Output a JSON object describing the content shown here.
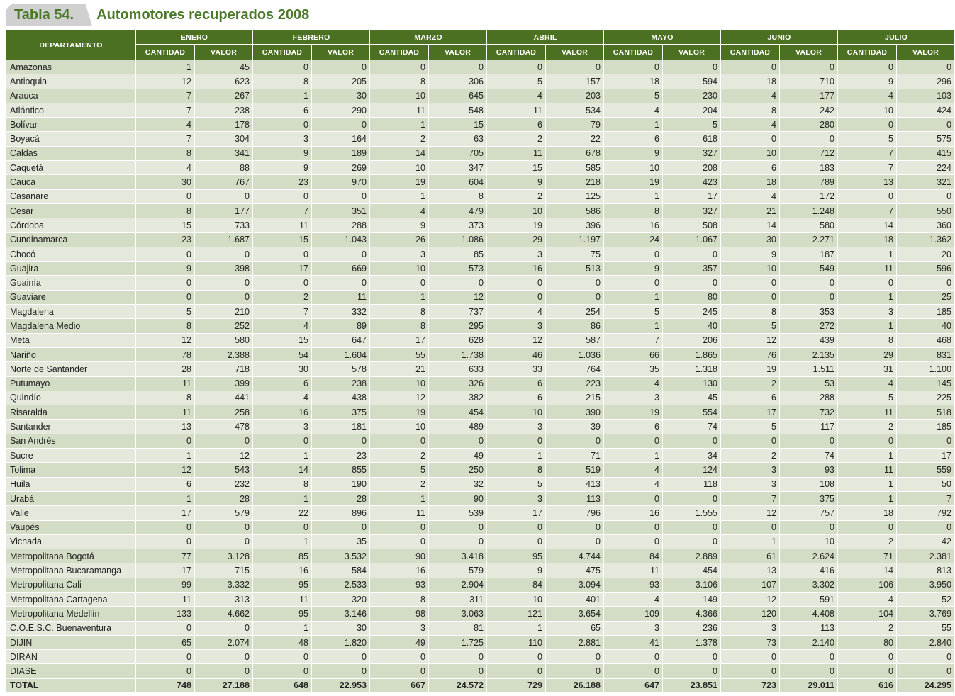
{
  "title": {
    "label": "Tabla 54.",
    "text": "Automotores recuperados 2008"
  },
  "colors": {
    "header": "#4b7021",
    "row_dark": "#d3dcc4",
    "row_light": "#e4e9dc",
    "title": "#4a7a28"
  },
  "table": {
    "dept_header": "DEPARTAMENTO",
    "sub_headers": {
      "qty": "CANTIDAD",
      "val": "VALOR"
    },
    "months": [
      "ENERO",
      "FEBRERO",
      "MARZO",
      "ABRIL",
      "MAYO",
      "JUNIO",
      "JULIO"
    ],
    "rows": [
      [
        "Amazonas",
        "1",
        "45",
        "0",
        "0",
        "0",
        "0",
        "0",
        "0",
        "0",
        "0",
        "0",
        "0",
        "0",
        "0"
      ],
      [
        "Antioquia",
        "12",
        "623",
        "8",
        "205",
        "8",
        "306",
        "5",
        "157",
        "18",
        "594",
        "18",
        "710",
        "9",
        "296"
      ],
      [
        "Arauca",
        "7",
        "267",
        "1",
        "30",
        "10",
        "645",
        "4",
        "203",
        "5",
        "230",
        "4",
        "177",
        "4",
        "103"
      ],
      [
        "Atlántico",
        "7",
        "238",
        "6",
        "290",
        "11",
        "548",
        "11",
        "534",
        "4",
        "204",
        "8",
        "242",
        "10",
        "424"
      ],
      [
        "Bolívar",
        "4",
        "178",
        "0",
        "0",
        "1",
        "15",
        "6",
        "79",
        "1",
        "5",
        "4",
        "280",
        "0",
        "0"
      ],
      [
        "Boyacá",
        "7",
        "304",
        "3",
        "164",
        "2",
        "63",
        "2",
        "22",
        "6",
        "618",
        "0",
        "0",
        "5",
        "575"
      ],
      [
        "Caldas",
        "8",
        "341",
        "9",
        "189",
        "14",
        "705",
        "11",
        "678",
        "9",
        "327",
        "10",
        "712",
        "7",
        "415"
      ],
      [
        "Caquetá",
        "4",
        "88",
        "9",
        "269",
        "10",
        "347",
        "15",
        "585",
        "10",
        "208",
        "6",
        "183",
        "7",
        "224"
      ],
      [
        "Cauca",
        "30",
        "767",
        "23",
        "970",
        "19",
        "604",
        "9",
        "218",
        "19",
        "423",
        "18",
        "789",
        "13",
        "321"
      ],
      [
        "Casanare",
        "0",
        "0",
        "0",
        "0",
        "1",
        "8",
        "2",
        "125",
        "1",
        "17",
        "4",
        "172",
        "0",
        "0"
      ],
      [
        "Cesar",
        "8",
        "177",
        "7",
        "351",
        "4",
        "479",
        "10",
        "586",
        "8",
        "327",
        "21",
        "1.248",
        "7",
        "550"
      ],
      [
        "Córdoba",
        "15",
        "733",
        "11",
        "288",
        "9",
        "373",
        "19",
        "396",
        "16",
        "508",
        "14",
        "580",
        "14",
        "360"
      ],
      [
        "Cundinamarca",
        "23",
        "1.687",
        "15",
        "1.043",
        "26",
        "1.086",
        "29",
        "1.197",
        "24",
        "1.067",
        "30",
        "2.271",
        "18",
        "1.362"
      ],
      [
        "Chocó",
        "0",
        "0",
        "0",
        "0",
        "3",
        "85",
        "3",
        "75",
        "0",
        "0",
        "9",
        "187",
        "1",
        "20"
      ],
      [
        "Guajira",
        "9",
        "398",
        "17",
        "669",
        "10",
        "573",
        "16",
        "513",
        "9",
        "357",
        "10",
        "549",
        "11",
        "596"
      ],
      [
        "Guainía",
        "0",
        "0",
        "0",
        "0",
        "0",
        "0",
        "0",
        "0",
        "0",
        "0",
        "0",
        "0",
        "0",
        "0"
      ],
      [
        "Guaviare",
        "0",
        "0",
        "2",
        "11",
        "1",
        "12",
        "0",
        "0",
        "1",
        "80",
        "0",
        "0",
        "1",
        "25"
      ],
      [
        "Magdalena",
        "5",
        "210",
        "7",
        "332",
        "8",
        "737",
        "4",
        "254",
        "5",
        "245",
        "8",
        "353",
        "3",
        "185"
      ],
      [
        "Magdalena Medio",
        "8",
        "252",
        "4",
        "89",
        "8",
        "295",
        "3",
        "86",
        "1",
        "40",
        "5",
        "272",
        "1",
        "40"
      ],
      [
        "Meta",
        "12",
        "580",
        "15",
        "647",
        "17",
        "628",
        "12",
        "587",
        "7",
        "206",
        "12",
        "439",
        "8",
        "468"
      ],
      [
        "Nariño",
        "78",
        "2.388",
        "54",
        "1.604",
        "55",
        "1.738",
        "46",
        "1.036",
        "66",
        "1.865",
        "76",
        "2.135",
        "29",
        "831"
      ],
      [
        "Norte de Santander",
        "28",
        "718",
        "30",
        "578",
        "21",
        "633",
        "33",
        "764",
        "35",
        "1.318",
        "19",
        "1.511",
        "31",
        "1.100"
      ],
      [
        "Putumayo",
        "11",
        "399",
        "6",
        "238",
        "10",
        "326",
        "6",
        "223",
        "4",
        "130",
        "2",
        "53",
        "4",
        "145"
      ],
      [
        "Quindío",
        "8",
        "441",
        "4",
        "438",
        "12",
        "382",
        "6",
        "215",
        "3",
        "45",
        "6",
        "288",
        "5",
        "225"
      ],
      [
        "Risaralda",
        "11",
        "258",
        "16",
        "375",
        "19",
        "454",
        "10",
        "390",
        "19",
        "554",
        "17",
        "732",
        "11",
        "518"
      ],
      [
        "Santander",
        "13",
        "478",
        "3",
        "181",
        "10",
        "489",
        "3",
        "39",
        "6",
        "74",
        "5",
        "117",
        "2",
        "185"
      ],
      [
        "San Andrés",
        "0",
        "0",
        "0",
        "0",
        "0",
        "0",
        "0",
        "0",
        "0",
        "0",
        "0",
        "0",
        "0",
        "0"
      ],
      [
        "Sucre",
        "1",
        "12",
        "1",
        "23",
        "2",
        "49",
        "1",
        "71",
        "1",
        "34",
        "2",
        "74",
        "1",
        "17"
      ],
      [
        "Tolima",
        "12",
        "543",
        "14",
        "855",
        "5",
        "250",
        "8",
        "519",
        "4",
        "124",
        "3",
        "93",
        "11",
        "559"
      ],
      [
        "Huila",
        "6",
        "232",
        "8",
        "190",
        "2",
        "32",
        "5",
        "413",
        "4",
        "118",
        "3",
        "108",
        "1",
        "50"
      ],
      [
        "Urabá",
        "1",
        "28",
        "1",
        "28",
        "1",
        "90",
        "3",
        "113",
        "0",
        "0",
        "7",
        "375",
        "1",
        "7"
      ],
      [
        "Valle",
        "17",
        "579",
        "22",
        "896",
        "11",
        "539",
        "17",
        "796",
        "16",
        "1.555",
        "12",
        "757",
        "18",
        "792"
      ],
      [
        "Vaupés",
        "0",
        "0",
        "0",
        "0",
        "0",
        "0",
        "0",
        "0",
        "0",
        "0",
        "0",
        "0",
        "0",
        "0"
      ],
      [
        "Vichada",
        "0",
        "0",
        "1",
        "35",
        "0",
        "0",
        "0",
        "0",
        "0",
        "0",
        "1",
        "10",
        "2",
        "42"
      ],
      [
        "Metropolitana Bogotá",
        "77",
        "3.128",
        "85",
        "3.532",
        "90",
        "3.418",
        "95",
        "4.744",
        "84",
        "2.889",
        "61",
        "2.624",
        "71",
        "2.381"
      ],
      [
        "Metropolitana Bucaramanga",
        "17",
        "715",
        "16",
        "584",
        "16",
        "579",
        "9",
        "475",
        "11",
        "454",
        "13",
        "416",
        "14",
        "813"
      ],
      [
        "Metropolitana Cali",
        "99",
        "3.332",
        "95",
        "2.533",
        "93",
        "2.904",
        "84",
        "3.094",
        "93",
        "3.106",
        "107",
        "3.302",
        "106",
        "3.950"
      ],
      [
        "Metropolitana Cartagena",
        "11",
        "313",
        "11",
        "320",
        "8",
        "311",
        "10",
        "401",
        "4",
        "149",
        "12",
        "591",
        "4",
        "52"
      ],
      [
        "Metropolitana Medellín",
        "133",
        "4.662",
        "95",
        "3.146",
        "98",
        "3.063",
        "121",
        "3.654",
        "109",
        "4.366",
        "120",
        "4.408",
        "104",
        "3.769"
      ],
      [
        "C.O.E.S.C. Buenaventura",
        "0",
        "0",
        "1",
        "30",
        "3",
        "81",
        "1",
        "65",
        "3",
        "236",
        "3",
        "113",
        "2",
        "55"
      ],
      [
        "DIJIN",
        "65",
        "2.074",
        "48",
        "1.820",
        "49",
        "1.725",
        "110",
        "2.881",
        "41",
        "1.378",
        "73",
        "2.140",
        "80",
        "2.840"
      ],
      [
        "DIRAN",
        "0",
        "0",
        "0",
        "0",
        "0",
        "0",
        "0",
        "0",
        "0",
        "0",
        "0",
        "0",
        "0",
        "0"
      ],
      [
        "DIASE",
        "0",
        "0",
        "0",
        "0",
        "0",
        "0",
        "0",
        "0",
        "0",
        "0",
        "0",
        "0",
        "0",
        "0"
      ]
    ],
    "total": [
      "TOTAL",
      "748",
      "27.188",
      "648",
      "22.953",
      "667",
      "24.572",
      "729",
      "26.188",
      "647",
      "23.851",
      "723",
      "29.011",
      "616",
      "24.295"
    ]
  }
}
